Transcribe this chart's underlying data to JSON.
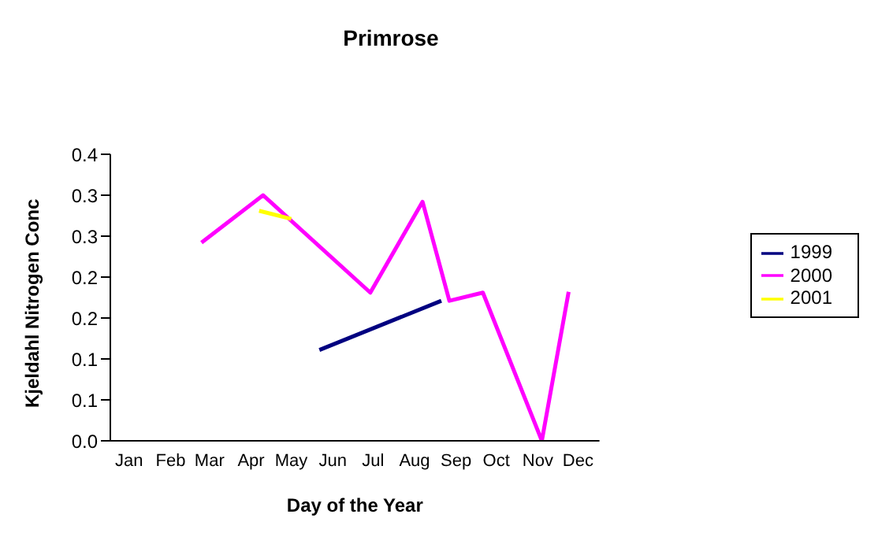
{
  "chart_data": {
    "type": "line",
    "title": "Primrose",
    "xlabel": "Day of the Year",
    "ylabel": "Kjeldahl Nitrogen Conc",
    "xlim": [
      "--01-01",
      "--12-31"
    ],
    "xticks": [
      {
        "value": "--01-15",
        "label": "Jan"
      },
      {
        "value": "--02-15",
        "label": "Feb"
      },
      {
        "value": "--03-15",
        "label": "Mar"
      },
      {
        "value": "--04-15",
        "label": "Apr"
      },
      {
        "value": "--05-15",
        "label": "May"
      },
      {
        "value": "--06-15",
        "label": "Jun"
      },
      {
        "value": "--07-15",
        "label": "Jul"
      },
      {
        "value": "--08-15",
        "label": "Aug"
      },
      {
        "value": "--09-15",
        "label": "Sep"
      },
      {
        "value": "--10-15",
        "label": "Oct"
      },
      {
        "value": "--11-15",
        "label": "Nov"
      },
      {
        "value": "--12-15",
        "label": "Dec"
      }
    ],
    "ylim": [
      0,
      0.35
    ],
    "yticks": [
      {
        "value": 0,
        "label": "0.0"
      },
      {
        "value": 0.05,
        "label": "0.1"
      },
      {
        "value": 0.1,
        "label": "0.1"
      },
      {
        "value": 0.15,
        "label": "0.2"
      },
      {
        "value": 0.2,
        "label": "0.2"
      },
      {
        "value": 0.25,
        "label": "0.3"
      },
      {
        "value": 0.3,
        "label": "0.3"
      },
      {
        "value": 0.35,
        "label": "0.4"
      }
    ],
    "series": [
      {
        "name": "1999",
        "color": "#000080",
        "x": [
          "--06-05",
          "--09-04"
        ],
        "values": [
          0.111,
          0.171
        ]
      },
      {
        "name": "2000",
        "color": "#ff00ff",
        "x": [
          "--03-09",
          "--04-24",
          "--07-13",
          "--08-21",
          "--09-10",
          "--10-05",
          "--11-18",
          "--12-08"
        ],
        "values": [
          0.242,
          0.3,
          0.181,
          0.292,
          0.171,
          0.181,
          0,
          0.182
        ]
      },
      {
        "name": "2001",
        "color": "#ffff00",
        "x": [
          "--04-21",
          "--05-15"
        ],
        "values": [
          0.281,
          0.271
        ]
      }
    ],
    "grid": false,
    "legend": "right",
    "marker": "none",
    "line_style": "solid"
  }
}
